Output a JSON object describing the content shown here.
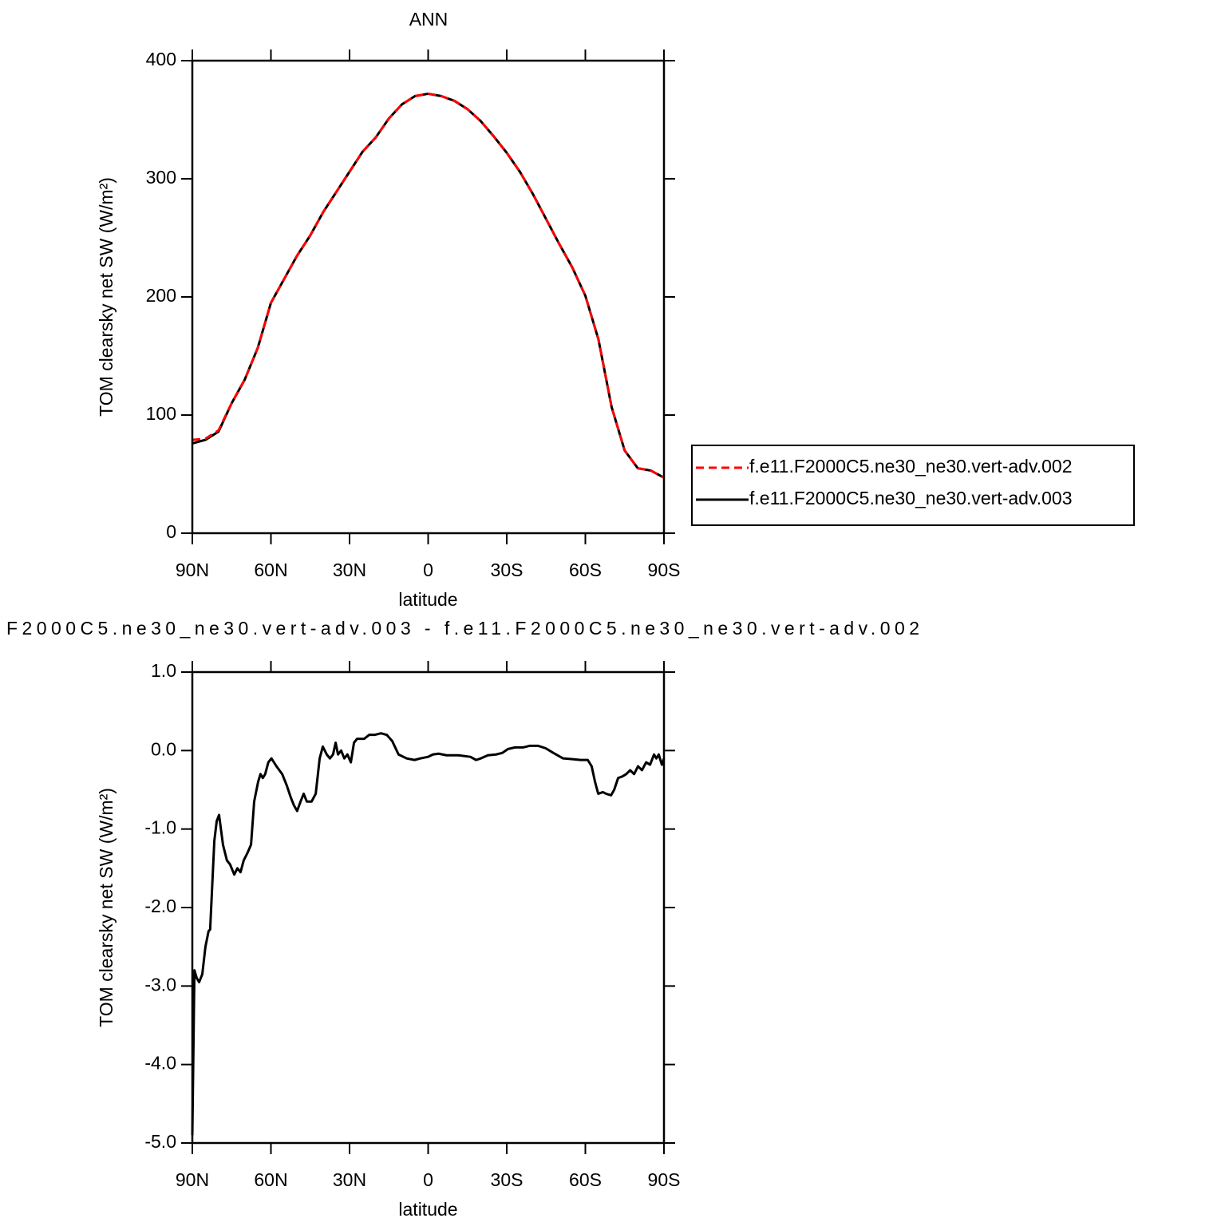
{
  "chart_data": [
    {
      "type": "line",
      "title": "ANN",
      "xlabel": "latitude",
      "ylabel": "TOM clearsky net SW (W/m²)",
      "x": [
        90,
        85,
        80,
        75,
        70,
        65,
        60,
        55,
        50,
        45,
        40,
        35,
        30,
        25,
        20,
        15,
        10,
        5,
        0,
        -5,
        -10,
        -15,
        -20,
        -25,
        -30,
        -35,
        -40,
        -45,
        -50,
        -55,
        -60,
        -65,
        -70,
        -75,
        -80,
        -85,
        -90
      ],
      "series": [
        {
          "name": "f.e11.F2000C5.ne30_ne30.vert-adv.002",
          "color": "#ff0000",
          "linestyle": "dashed",
          "values": [
            79,
            80,
            87,
            110,
            130,
            157,
            195,
            215,
            235,
            252,
            272,
            289,
            306,
            323,
            335,
            351,
            363,
            370,
            372,
            370,
            366,
            359,
            349,
            336,
            322,
            306,
            287,
            266,
            245,
            225,
            201,
            164,
            107,
            70,
            55,
            53,
            47
          ]
        },
        {
          "name": "f.e11.F2000C5.ne30_ne30.vert-adv.003",
          "color": "#000000",
          "linestyle": "solid",
          "values": [
            76,
            79,
            86,
            110,
            130,
            157,
            195,
            215,
            235,
            252,
            272,
            289,
            306,
            323,
            335,
            351,
            363,
            370,
            372,
            370,
            366,
            359,
            349,
            336,
            322,
            306,
            287,
            266,
            245,
            225,
            201,
            164,
            107,
            70,
            55,
            53,
            47
          ]
        }
      ],
      "xlim": [
        90,
        -90
      ],
      "xticks": [
        {
          "value": 90,
          "label": "90N"
        },
        {
          "value": 60,
          "label": "60N"
        },
        {
          "value": 30,
          "label": "30N"
        },
        0,
        {
          "value": -30,
          "label": "30S"
        },
        {
          "value": -60,
          "label": "60S"
        },
        {
          "value": -90,
          "label": "90S"
        }
      ],
      "ylim": [
        0,
        400
      ],
      "yticks": [
        0,
        100,
        200,
        300,
        400
      ],
      "legend": "right"
    },
    {
      "type": "line",
      "title": "F2000C5.ne30_ne30.vert-adv.003 - f.e11.F2000C5.ne30_ne30.vert-adv.002",
      "xlabel": "latitude",
      "ylabel": "TOM clearsky net SW (W/m²)",
      "x": [
        90,
        89.2,
        88.3,
        87.4,
        86.2,
        85.0,
        83.8,
        83.2,
        81.6,
        80.7,
        79.8,
        78.3,
        76.8,
        75.6,
        74.0,
        72.8,
        71.6,
        70.4,
        68.9,
        67.6,
        66.4,
        64.9,
        64.0,
        63.1,
        62.2,
        61.0,
        59.8,
        57.9,
        55.7,
        53.9,
        52.4,
        51.2,
        50.0,
        48.7,
        47.5,
        46.3,
        44.5,
        42.9,
        41.4,
        40.2,
        38.7,
        37.5,
        36.3,
        35.3,
        34.4,
        33.2,
        32.0,
        30.8,
        29.5,
        28.3,
        27.1,
        24.4,
        22.5,
        20.4,
        18.0,
        15.8,
        13.7,
        11.3,
        8.2,
        5.2,
        3.0,
        0,
        -1.8,
        -4.0,
        -7.0,
        -11.6,
        -16.1,
        -18.3,
        -20.1,
        -22.8,
        -25.9,
        -28.3,
        -30.5,
        -33.2,
        -36.2,
        -38.7,
        -42.0,
        -44.8,
        -47.8,
        -51.5,
        -55.1,
        -58.2,
        -60.9,
        -62.4,
        -63.7,
        -64.9,
        -66.7,
        -67.9,
        -69.8,
        -71.0,
        -72.5,
        -74.1,
        -75.6,
        -77.1,
        -78.6,
        -80.1,
        -81.6,
        -83.2,
        -84.7,
        -86.2,
        -87.1,
        -88.0,
        -89.2,
        -90
      ],
      "values": [
        -4.9,
        -2.8,
        -2.9,
        -2.95,
        -2.85,
        -2.5,
        -2.3,
        -2.28,
        -1.15,
        -0.9,
        -0.82,
        -1.2,
        -1.4,
        -1.45,
        -1.58,
        -1.5,
        -1.55,
        -1.4,
        -1.3,
        -1.2,
        -0.65,
        -0.4,
        -0.3,
        -0.35,
        -0.3,
        -0.15,
        -0.1,
        -0.2,
        -0.3,
        -0.45,
        -0.6,
        -0.7,
        -0.77,
        -0.65,
        -0.55,
        -0.65,
        -0.65,
        -0.55,
        -0.1,
        0.05,
        -0.05,
        -0.1,
        -0.05,
        0.1,
        -0.05,
        0.0,
        -0.1,
        -0.05,
        -0.15,
        0.1,
        0.15,
        0.15,
        0.2,
        0.2,
        0.22,
        0.2,
        0.12,
        -0.05,
        -0.1,
        -0.12,
        -0.1,
        -0.08,
        -0.05,
        -0.04,
        -0.06,
        -0.06,
        -0.08,
        -0.12,
        -0.1,
        -0.06,
        -0.05,
        -0.03,
        0.02,
        0.04,
        0.04,
        0.06,
        0.06,
        0.03,
        -0.03,
        -0.1,
        -0.11,
        -0.12,
        -0.12,
        -0.2,
        -0.4,
        -0.55,
        -0.53,
        -0.55,
        -0.57,
        -0.5,
        -0.35,
        -0.33,
        -0.3,
        -0.25,
        -0.3,
        -0.2,
        -0.25,
        -0.15,
        -0.18,
        -0.05,
        -0.1,
        -0.05,
        -0.18,
        -0.1
      ],
      "color": "#000000",
      "xlim": [
        90,
        -90
      ],
      "xticks": [
        {
          "value": 90,
          "label": "90N"
        },
        {
          "value": 60,
          "label": "60N"
        },
        {
          "value": 30,
          "label": "30N"
        },
        0,
        {
          "value": -30,
          "label": "30S"
        },
        {
          "value": -60,
          "label": "60S"
        },
        {
          "value": -90,
          "label": "90S"
        }
      ],
      "ylim": [
        -5,
        1
      ],
      "yticks": [
        {
          "value": -5,
          "label": "-5.0"
        },
        {
          "value": -4,
          "label": "-4.0"
        },
        {
          "value": -3,
          "label": "-3.0"
        },
        {
          "value": -2,
          "label": "-2.0"
        },
        {
          "value": -1,
          "label": "-1.0"
        },
        {
          "value": 0,
          "label": "0.0"
        },
        {
          "value": 1,
          "label": "1.0"
        }
      ]
    }
  ]
}
